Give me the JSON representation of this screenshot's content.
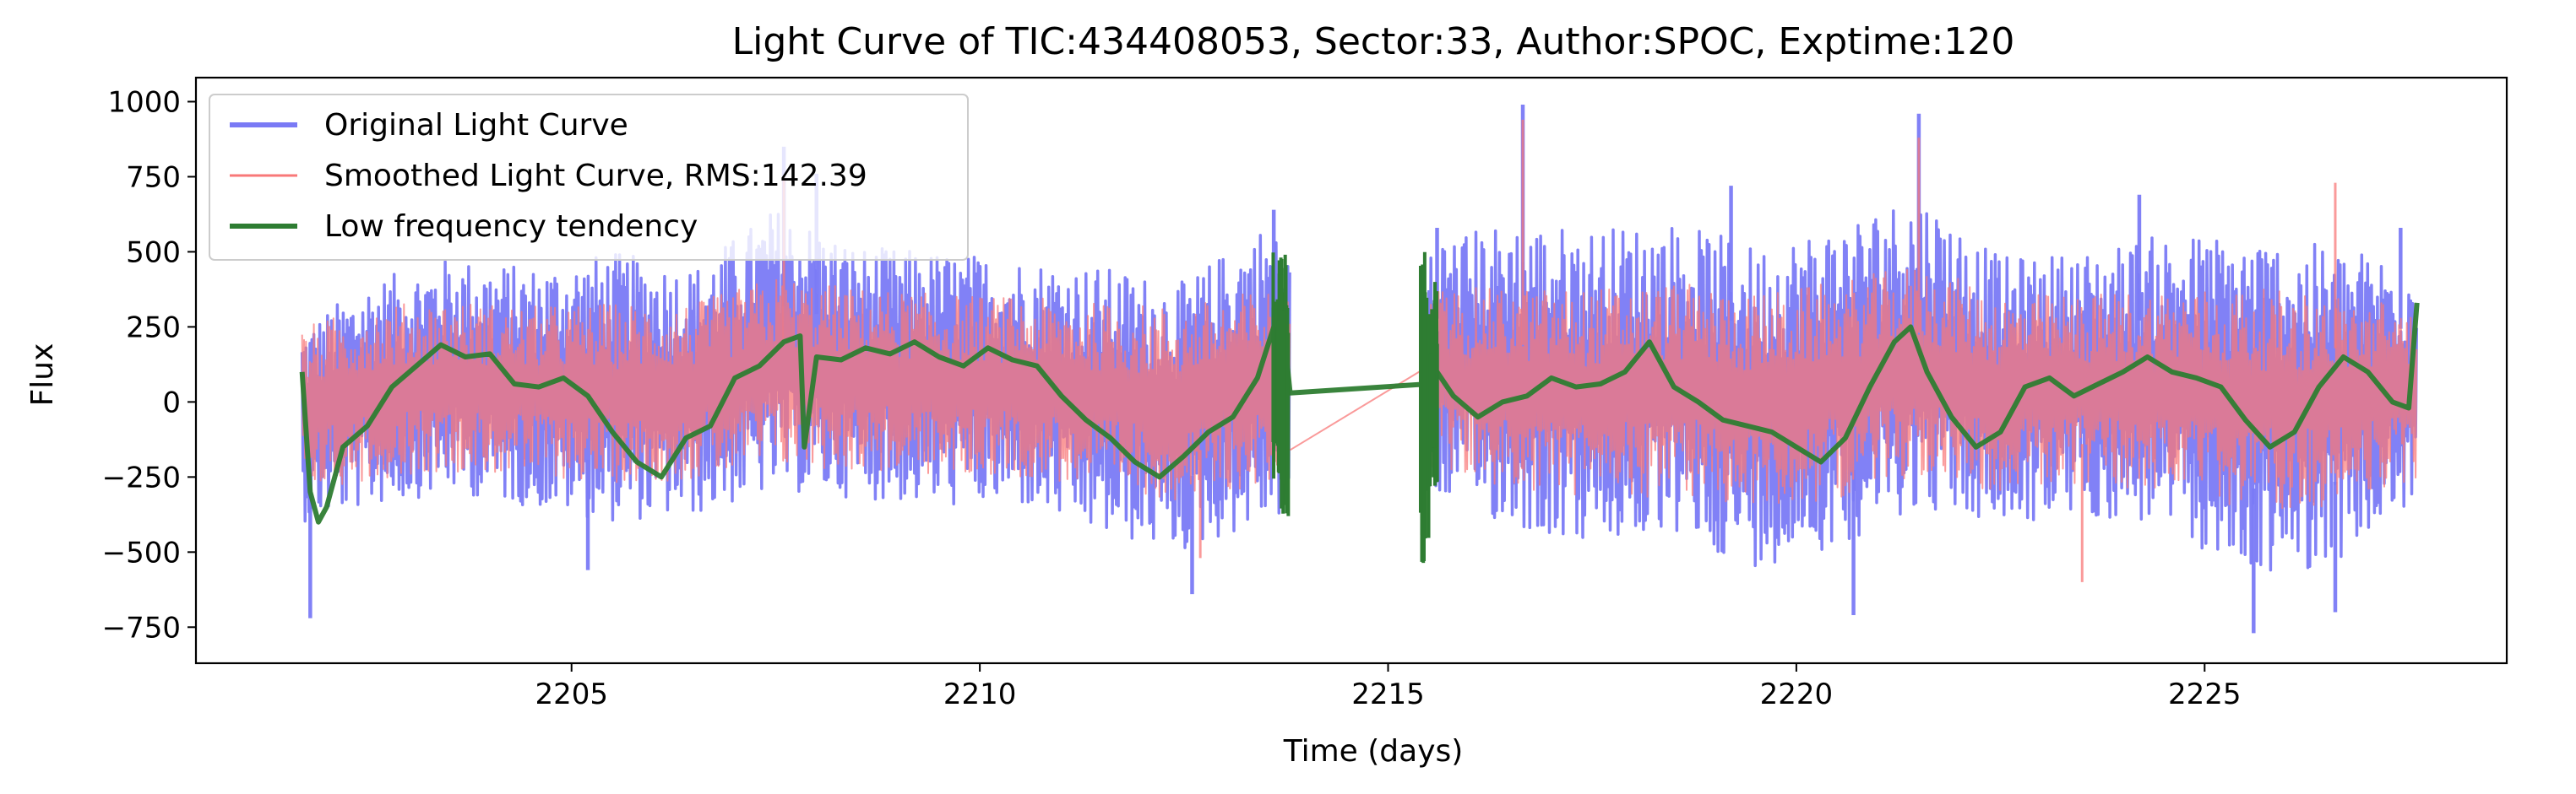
{
  "chart_data": {
    "type": "line",
    "title": "Light Curve of TIC:434408053, Sector:33, Author:SPOC, Exptime:120",
    "xlabel": "Time (days)",
    "ylabel": "Flux",
    "xlim": [
      2200.4,
      2228.7
    ],
    "ylim": [
      -870,
      1080
    ],
    "xticks": [
      2205,
      2210,
      2215,
      2220,
      2225
    ],
    "yticks": [
      -750,
      -500,
      -250,
      0,
      250,
      500,
      750,
      1000
    ],
    "grid": false,
    "legend_position": "upper-left",
    "segments": [
      [
        2201.7,
        2213.8
      ],
      [
        2215.5,
        2227.6
      ]
    ],
    "series": [
      {
        "name": "Original Light Curve",
        "color": "#7a7af5",
        "envelope": {
          "x": [
            2201.7,
            2202.5,
            2203.5,
            2204.5,
            2205.5,
            2206.5,
            2207.5,
            2208.5,
            2209.5,
            2210.5,
            2211.5,
            2212.5,
            2213.5,
            2213.8,
            2215.5,
            2216.5,
            2217.5,
            2218.5,
            2219.5,
            2220.5,
            2221.5,
            2222.5,
            2223.5,
            2224.5,
            2225.5,
            2226.5,
            2227.6
          ],
          "upper": [
            250,
            400,
            480,
            450,
            500,
            450,
            650,
            520,
            500,
            480,
            450,
            400,
            600,
            500,
            550,
            600,
            580,
            600,
            520,
            600,
            700,
            480,
            500,
            560,
            560,
            520,
            480
          ],
          "lower": [
            -400,
            -350,
            -300,
            -350,
            -400,
            -380,
            -300,
            -320,
            -350,
            -350,
            -450,
            -500,
            -400,
            -380,
            -300,
            -420,
            -480,
            -450,
            -550,
            -480,
            -350,
            -420,
            -380,
            -420,
            -580,
            -550,
            -350
          ]
        },
        "spikes": [
          [
            2201.8,
            -720
          ],
          [
            2205.2,
            -560
          ],
          [
            2207.6,
            850
          ],
          [
            2208.0,
            760
          ],
          [
            2212.6,
            -640
          ],
          [
            2213.6,
            640
          ],
          [
            2215.6,
            580
          ],
          [
            2216.65,
            990
          ],
          [
            2219.2,
            720
          ],
          [
            2220.7,
            -710
          ],
          [
            2221.5,
            960
          ],
          [
            2224.2,
            690
          ],
          [
            2225.6,
            -770
          ],
          [
            2226.6,
            -700
          ],
          [
            2227.4,
            580
          ]
        ]
      },
      {
        "name": "Smoothed Light Curve, RMS:142.39",
        "color": "#f87878",
        "envelope": {
          "x": [
            2201.7,
            2202.5,
            2203.5,
            2204.5,
            2205.5,
            2206.5,
            2207.5,
            2208.5,
            2209.5,
            2210.5,
            2211.5,
            2212.5,
            2213.5,
            2213.8,
            2215.5,
            2216.5,
            2217.5,
            2218.5,
            2219.5,
            2220.5,
            2221.5,
            2222.5,
            2223.5,
            2224.5,
            2225.5,
            2226.5,
            2227.6
          ],
          "upper": [
            250,
            320,
            340,
            320,
            330,
            330,
            420,
            380,
            360,
            350,
            330,
            320,
            380,
            340,
            380,
            380,
            380,
            400,
            360,
            400,
            460,
            360,
            360,
            380,
            380,
            360,
            330
          ],
          "lower": [
            -300,
            -260,
            -230,
            -250,
            -270,
            -260,
            -220,
            -230,
            -250,
            -250,
            -290,
            -330,
            -280,
            -270,
            -230,
            -290,
            -330,
            -310,
            -360,
            -320,
            -250,
            -300,
            -280,
            -300,
            -360,
            -350,
            -260
          ]
        },
        "spikes": [
          [
            2207.6,
            750
          ],
          [
            2212.7,
            -520
          ],
          [
            2216.65,
            940
          ],
          [
            2221.5,
            880
          ],
          [
            2223.5,
            -600
          ],
          [
            2226.6,
            730
          ]
        ],
        "bridge": [
          [
            2213.8,
            -160
          ],
          [
            2215.5,
            120
          ]
        ]
      },
      {
        "name": "Low frequency tendency",
        "color": "#2e7d32",
        "x": [
          2201.7,
          2201.8,
          2201.9,
          2202.0,
          2202.2,
          2202.5,
          2202.8,
          2203.1,
          2203.4,
          2203.7,
          2204.0,
          2204.3,
          2204.6,
          2204.9,
          2205.2,
          2205.5,
          2205.8,
          2206.1,
          2206.4,
          2206.7,
          2207.0,
          2207.3,
          2207.6,
          2207.8,
          2207.85,
          2208.0,
          2208.3,
          2208.6,
          2208.9,
          2209.2,
          2209.5,
          2209.8,
          2210.1,
          2210.4,
          2210.7,
          2211.0,
          2211.3,
          2211.6,
          2211.9,
          2212.2,
          2212.5,
          2212.8,
          2213.1,
          2213.4,
          2213.6,
          2213.7,
          2213.8,
          2215.5,
          2215.6,
          2215.8,
          2216.1,
          2216.4,
          2216.7,
          2217.0,
          2217.3,
          2217.6,
          2217.9,
          2218.2,
          2218.5,
          2218.8,
          2219.1,
          2219.4,
          2219.7,
          2220.0,
          2220.3,
          2220.6,
          2220.9,
          2221.2,
          2221.4,
          2221.6,
          2221.9,
          2222.2,
          2222.5,
          2222.8,
          2223.1,
          2223.4,
          2223.7,
          2224.0,
          2224.3,
          2224.6,
          2224.9,
          2225.2,
          2225.5,
          2225.8,
          2226.1,
          2226.4,
          2226.7,
          2227.0,
          2227.3,
          2227.5,
          2227.6
        ],
        "y": [
          100,
          -300,
          -400,
          -350,
          -150,
          -80,
          50,
          120,
          190,
          150,
          160,
          60,
          50,
          80,
          20,
          -100,
          -200,
          -250,
          -120,
          -80,
          80,
          120,
          200,
          220,
          -150,
          150,
          140,
          180,
          160,
          200,
          150,
          120,
          180,
          140,
          120,
          20,
          -60,
          -120,
          -200,
          -250,
          -180,
          -100,
          -50,
          80,
          250,
          300,
          30,
          60,
          100,
          20,
          -50,
          0,
          20,
          80,
          50,
          60,
          100,
          200,
          50,
          0,
          -60,
          -80,
          -100,
          -150,
          -200,
          -120,
          50,
          200,
          250,
          100,
          -50,
          -150,
          -100,
          50,
          80,
          20,
          60,
          100,
          150,
          100,
          80,
          50,
          -60,
          -150,
          -100,
          50,
          150,
          100,
          0,
          -20,
          330
        ],
        "bursts": [
          [
            2213.65,
            -260,
            500
          ],
          [
            2213.75,
            -380,
            520
          ],
          [
            2215.45,
            -550,
            500
          ],
          [
            2215.55,
            -300,
            400
          ]
        ]
      }
    ]
  }
}
